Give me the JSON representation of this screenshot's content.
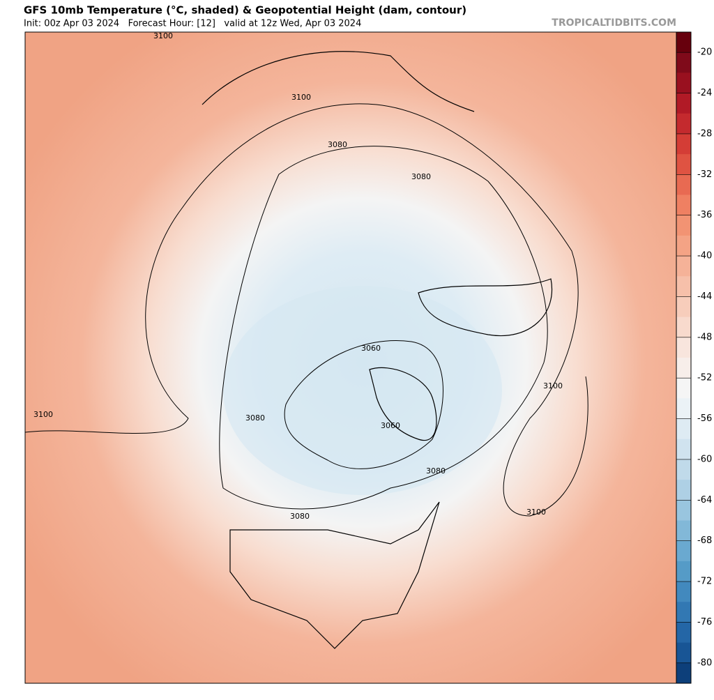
{
  "header": {
    "title": "GFS 10mb Temperature (°C, shaded) & Geopotential Height (dam, contour)",
    "subtitle": "Init: 00z Apr 03 2024   Forecast Hour: [12]   valid at 12z Wed, Apr 03 2024",
    "source": "TROPICALTIDBITS.COM"
  },
  "map": {
    "contour_labels": [
      "3100",
      "3100",
      "3100",
      "3100",
      "3100",
      "3080",
      "3080",
      "3080",
      "3080",
      "3080",
      "3060",
      "3060"
    ]
  },
  "colorbar": {
    "ticks": [
      -20,
      -24,
      -28,
      -32,
      -36,
      -40,
      -44,
      -48,
      -52,
      -56,
      -60,
      -64,
      -68,
      -72,
      -76,
      -80
    ],
    "colors": [
      "#67000d",
      "#7f0a1a",
      "#99101f",
      "#b11a26",
      "#c42a2e",
      "#d43d36",
      "#df5342",
      "#e86a52",
      "#ef8062",
      "#f29373",
      "#f4a385",
      "#f5b298",
      "#f6c0aa",
      "#f7cdbb",
      "#f8dacd",
      "#f8e5dd",
      "#f7eeea",
      "#f5f5f5",
      "#ebf2f6",
      "#deebf3",
      "#d0e3ef",
      "#c0daea",
      "#aed0e5",
      "#99c5df",
      "#82b8d8",
      "#6aa9d0",
      "#559bc7",
      "#4289be",
      "#3278b3",
      "#2466a6",
      "#185595",
      "#0d3f7a"
    ]
  }
}
